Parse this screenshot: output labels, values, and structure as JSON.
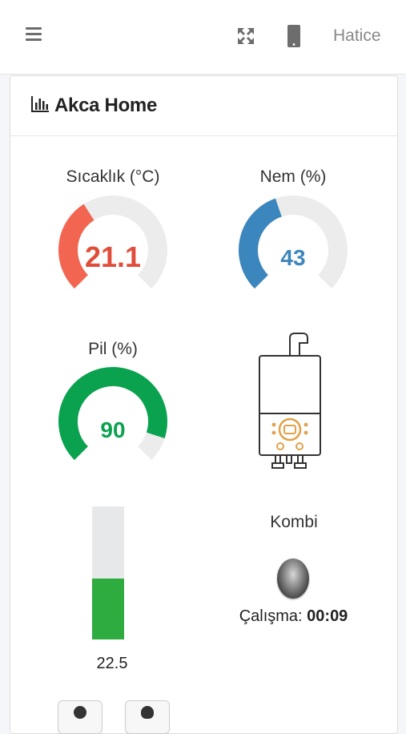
{
  "topbar": {
    "username": "Hatice",
    "icons": [
      "menu-icon",
      "expand-icon",
      "mobile-icon"
    ]
  },
  "card": {
    "title": "Akca Home",
    "title_icon": "bar-chart-icon"
  },
  "gauges": {
    "temperature": {
      "label": "Sıcaklık (°C)",
      "value": "21.1",
      "fraction": 0.38,
      "color": "#f26651",
      "track": "#ececec"
    },
    "humidity": {
      "label": "Nem (%)",
      "value": "43",
      "fraction": 0.43,
      "color": "#3c86be",
      "track": "#ececec"
    },
    "battery": {
      "label": "Pil (%)",
      "value": "90",
      "fraction": 0.9,
      "color": "#0aa24f",
      "track": "#ececec"
    }
  },
  "bar": {
    "value": "22.5",
    "fill_fraction": 0.46,
    "color": "#2fac3f"
  },
  "kombi": {
    "label": "Kombi",
    "icon": "boiler-icon",
    "status_lamp": "status-lamp",
    "runtime_label": "Çalışma:",
    "runtime_value": "00:09"
  }
}
